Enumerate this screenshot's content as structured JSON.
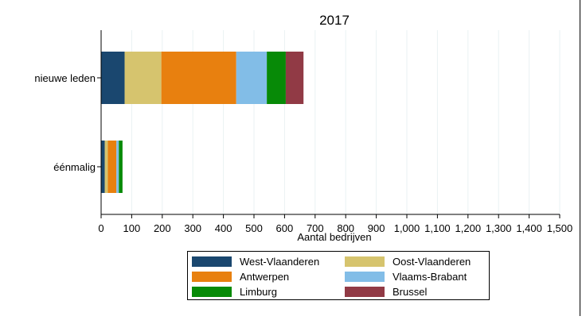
{
  "chart_data": {
    "type": "bar",
    "orientation": "horizontal",
    "stacked": true,
    "title": "2017",
    "xlabel": "Aantal bedrijven",
    "ylabel": "",
    "xlim": [
      0,
      1500
    ],
    "x_ticks": [
      0,
      100,
      200,
      300,
      400,
      500,
      600,
      700,
      800,
      900,
      1000,
      1100,
      1200,
      1300,
      1400,
      1500
    ],
    "x_tick_labels": [
      "0",
      "100",
      "200",
      "300",
      "400",
      "500",
      "600",
      "700",
      "800",
      "900",
      "1,000",
      "1,100",
      "1,200",
      "1,300",
      "1,400",
      "1,500"
    ],
    "grid": "vertical",
    "legend_position": "bottom",
    "categories": [
      "nieuwe leden",
      "éénmalig"
    ],
    "series": [
      {
        "name": "West-Vlaanderen",
        "color": "#1a476f",
        "values": [
          77,
          12
        ]
      },
      {
        "name": "Oost-Vlaanderen",
        "color": "#d6c46e",
        "values": [
          120,
          10
        ]
      },
      {
        "name": "Antwerpen",
        "color": "#e8800f",
        "values": [
          245,
          28
        ]
      },
      {
        "name": "Vlaams-Brabant",
        "color": "#82bde7",
        "values": [
          100,
          8
        ]
      },
      {
        "name": "Limburg",
        "color": "#078a07",
        "values": [
          62,
          12
        ]
      },
      {
        "name": "Brussel",
        "color": "#913a45",
        "values": [
          58,
          0
        ]
      }
    ]
  }
}
